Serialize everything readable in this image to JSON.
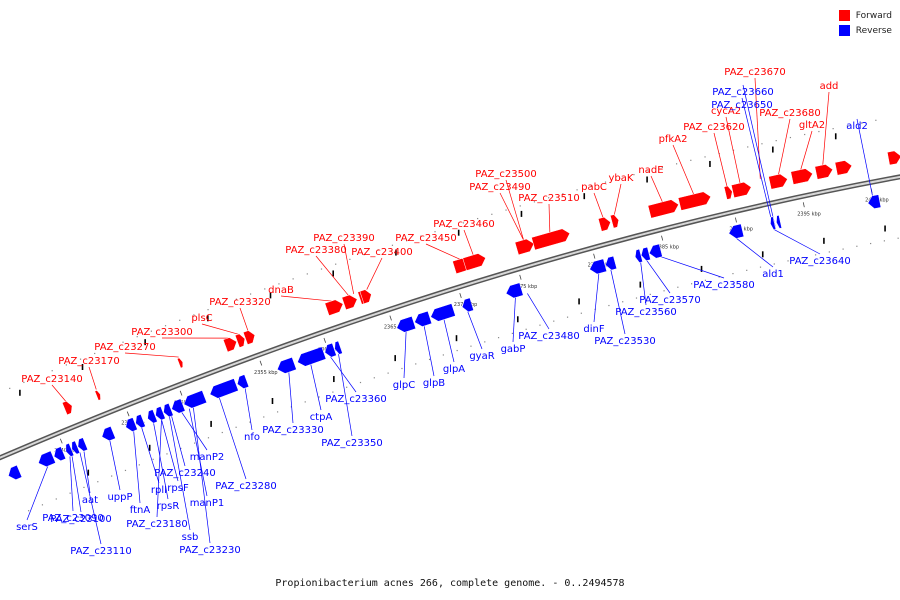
{
  "legend": {
    "forward_label": "Forward",
    "reverse_label": "Reverse",
    "forward_color": "#ff0000",
    "reverse_color": "#0000ff"
  },
  "caption": "Propionibacterium acnes 266, complete genome. - 0..2494578",
  "scale": {
    "tick_labels": [
      "2340 kbp",
      "2345 kbp",
      "2350 kbp",
      "2355 kbp",
      "2360 kbp",
      "2365 kbp",
      "2370 kbp",
      "2375 kbp",
      "2380 kbp",
      "2385 kbp",
      "2390 kbp",
      "2395 kbp",
      "2400 kbp"
    ]
  },
  "forward_genes": [
    "PAZ_c23140",
    "PAZ_c23170",
    "PAZ_c23270",
    "PAZ_c23300",
    "plsC",
    "PAZ_c23320",
    "dnaB",
    "PAZ_c23380",
    "PAZ_c23390",
    "PAZ_c23400",
    "PAZ_c23450",
    "PAZ_c23460",
    "PAZ_c23490",
    "PAZ_c23500",
    "PAZ_c23510",
    "pabC",
    "ybaK",
    "nadE",
    "pfkA2",
    "PAZ_c23620",
    "cycA2",
    "PAZ_c23670",
    "PAZ_c23680",
    "gltA2",
    "add"
  ],
  "reverse_genes": [
    "serS",
    "PAZ_c23090",
    "PAZ_c23100",
    "PAZ_c23110",
    "aat",
    "uppP",
    "ftnA",
    "rplI",
    "rpsR",
    "PAZ_c23180",
    "rpsF",
    "ssb",
    "PAZ_c23240",
    "manP2",
    "manP1",
    "PAZ_c23230",
    "PAZ_c23280",
    "nfo",
    "PAZ_c23330",
    "ctpA",
    "PAZ_c23360",
    "PAZ_c23350",
    "glpC",
    "glpB",
    "glpA",
    "gyaR",
    "gabP",
    "PAZ_c23480",
    "dinF",
    "PAZ_c23530",
    "PAZ_c23560",
    "PAZ_c23570",
    "PAZ_c23580",
    "ald1",
    "PAZ_c23640",
    "PAZ_c23650",
    "PAZ_c23660",
    "ald2"
  ]
}
